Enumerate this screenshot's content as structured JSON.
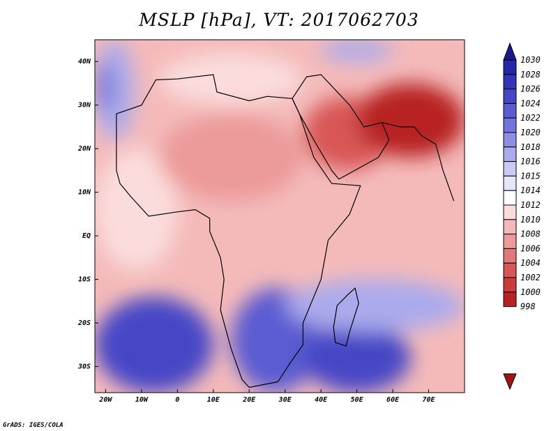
{
  "title": "MSLP [hPa], VT: 2017062703",
  "credit": "GrADS: IGES/COLA",
  "map": {
    "lon_range": [
      -23,
      80
    ],
    "lat_range": [
      -36,
      45
    ],
    "lon_ticks": [
      {
        "value": -20,
        "label": "20W"
      },
      {
        "value": -10,
        "label": "10W"
      },
      {
        "value": 0,
        "label": "0"
      },
      {
        "value": 10,
        "label": "10E"
      },
      {
        "value": 20,
        "label": "20E"
      },
      {
        "value": 30,
        "label": "30E"
      },
      {
        "value": 40,
        "label": "40E"
      },
      {
        "value": 50,
        "label": "50E"
      },
      {
        "value": 60,
        "label": "60E"
      },
      {
        "value": 70,
        "label": "70E"
      }
    ],
    "lat_ticks": [
      {
        "value": 40,
        "label": "40N"
      },
      {
        "value": 30,
        "label": "30N"
      },
      {
        "value": 20,
        "label": "20N"
      },
      {
        "value": 10,
        "label": "10N"
      },
      {
        "value": 0,
        "label": "EQ"
      },
      {
        "value": -10,
        "label": "10S"
      },
      {
        "value": -20,
        "label": "20S"
      },
      {
        "value": -30,
        "label": "30S"
      }
    ]
  },
  "colorbar": {
    "labels": [
      "1030",
      "1028",
      "1026",
      "1024",
      "1022",
      "1020",
      "1018",
      "1016",
      "1015",
      "1014",
      "1012",
      "1010",
      "1008",
      "1006",
      "1004",
      "1002",
      "1000",
      "998"
    ],
    "colors": [
      "#1a1a8c",
      "#2626a8",
      "#3434b8",
      "#4646c6",
      "#5c5cd2",
      "#7474dc",
      "#8e8ee4",
      "#aaaaec",
      "#cacaf4",
      "#e6e6fa",
      "#ffffff",
      "#fbdcdc",
      "#f4baba",
      "#ec9a9a",
      "#e27878",
      "#d85656",
      "#cc3a3a",
      "#b82222",
      "#a01414"
    ]
  },
  "pressure_field": {
    "background": "#f4baba",
    "regions": [
      {
        "name": "north-atlantic-high",
        "value": 1016,
        "color": "#aaaaec",
        "lon": [
          -23,
          -12
        ],
        "lat": [
          22,
          45
        ]
      },
      {
        "name": "north-atlantic-high-core",
        "value": 1020,
        "color": "#7474dc",
        "lon": [
          -23,
          -18
        ],
        "lat": [
          28,
          40
        ]
      },
      {
        "name": "tropical-atlantic",
        "value": 1012,
        "color": "#fbdcdc",
        "lon": [
          -23,
          0
        ],
        "lat": [
          -8,
          20
        ]
      },
      {
        "name": "south-atlantic-high",
        "value": 1024,
        "color": "#4646c6",
        "lon": [
          -23,
          10
        ],
        "lat": [
          -36,
          -14
        ]
      },
      {
        "name": "southern-africa-high",
        "value": 1022,
        "color": "#5c5cd2",
        "lon": [
          15,
          40
        ],
        "lat": [
          -36,
          -12
        ]
      },
      {
        "name": "indian-ocean-high",
        "value": 1024,
        "color": "#4646c6",
        "lon": [
          35,
          65
        ],
        "lat": [
          -36,
          -20
        ]
      },
      {
        "name": "indian-ocean-ridge",
        "value": 1016,
        "color": "#aaaaec",
        "lon": [
          30,
          80
        ],
        "lat": [
          -22,
          -10
        ]
      },
      {
        "name": "sahara-low",
        "value": 1008,
        "color": "#ec9a9a",
        "lon": [
          -5,
          35
        ],
        "lat": [
          8,
          28
        ]
      },
      {
        "name": "arabia-low",
        "value": 1002,
        "color": "#d85656",
        "lon": [
          35,
          60
        ],
        "lat": [
          15,
          32
        ]
      },
      {
        "name": "persian-gulf-low",
        "value": 998,
        "color": "#b82222",
        "lon": [
          50,
          80
        ],
        "lat": [
          18,
          35
        ]
      },
      {
        "name": "mediterranean",
        "value": 1012,
        "color": "#fbdcdc",
        "lon": [
          -5,
          35
        ],
        "lat": [
          30,
          42
        ]
      },
      {
        "name": "black-sea-high",
        "value": 1016,
        "color": "#aaaaec",
        "lon": [
          40,
          60
        ],
        "lat": [
          40,
          45
        ]
      }
    ]
  }
}
